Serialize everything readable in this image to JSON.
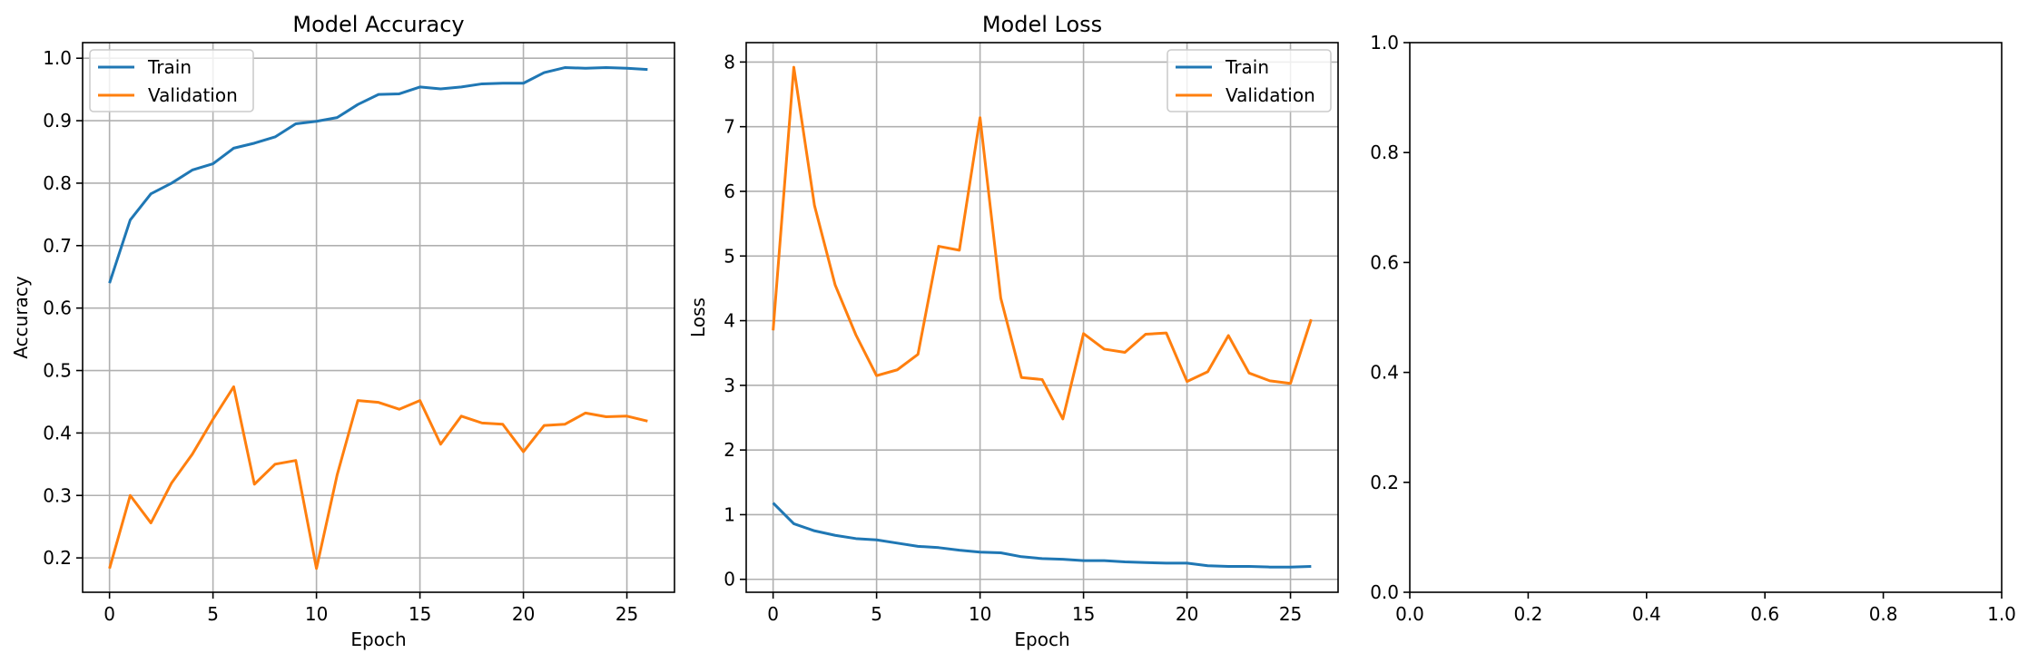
{
  "chart_data": [
    {
      "type": "line",
      "title": "Model Accuracy",
      "xlabel": "Epoch",
      "ylabel": "Accuracy",
      "xlim": [
        -1.3,
        27.3
      ],
      "ylim": [
        0.145,
        1.025
      ],
      "xticks": [
        0,
        5,
        10,
        15,
        20,
        25
      ],
      "yticks": [
        0.2,
        0.3,
        0.4,
        0.5,
        0.6,
        0.7,
        0.8,
        0.9,
        1.0
      ],
      "ytick_labels": [
        "0.2",
        "0.3",
        "0.4",
        "0.5",
        "0.6",
        "0.7",
        "0.8",
        "0.9",
        "1.0"
      ],
      "grid": true,
      "legend": "top-left",
      "x": [
        0,
        1,
        2,
        3,
        4,
        5,
        6,
        7,
        8,
        9,
        10,
        11,
        12,
        13,
        14,
        15,
        16,
        17,
        18,
        19,
        20,
        21,
        22,
        23,
        24,
        25,
        26
      ],
      "series": [
        {
          "name": "Train",
          "color": "#1f77b4",
          "values": [
            0.64,
            0.741,
            0.783,
            0.8,
            0.821,
            0.831,
            0.856,
            0.864,
            0.874,
            0.895,
            0.899,
            0.905,
            0.926,
            0.942,
            0.943,
            0.954,
            0.951,
            0.954,
            0.959,
            0.96,
            0.96,
            0.977,
            0.985,
            0.984,
            0.985,
            0.984,
            0.982
          ]
        },
        {
          "name": "Validation",
          "color": "#ff7f0e",
          "values": [
            0.183,
            0.3,
            0.256,
            0.32,
            0.366,
            0.422,
            0.474,
            0.318,
            0.35,
            0.356,
            0.183,
            0.333,
            0.452,
            0.449,
            0.438,
            0.452,
            0.382,
            0.427,
            0.416,
            0.414,
            0.37,
            0.412,
            0.414,
            0.432,
            0.426,
            0.427,
            0.419
          ]
        }
      ]
    },
    {
      "type": "line",
      "title": "Model Loss",
      "xlabel": "Epoch",
      "ylabel": "Loss",
      "xlim": [
        -1.3,
        27.3
      ],
      "ylim": [
        -0.2,
        8.3
      ],
      "xticks": [
        0,
        5,
        10,
        15,
        20,
        25
      ],
      "yticks": [
        0,
        1,
        2,
        3,
        4,
        5,
        6,
        7,
        8
      ],
      "ytick_labels": [
        "0",
        "1",
        "2",
        "3",
        "4",
        "5",
        "6",
        "7",
        "8"
      ],
      "grid": true,
      "legend": "top-right",
      "x": [
        0,
        1,
        2,
        3,
        4,
        5,
        6,
        7,
        8,
        9,
        10,
        11,
        12,
        13,
        14,
        15,
        16,
        17,
        18,
        19,
        20,
        21,
        22,
        23,
        24,
        25,
        26
      ],
      "series": [
        {
          "name": "Train",
          "color": "#1f77b4",
          "values": [
            1.18,
            0.86,
            0.75,
            0.68,
            0.63,
            0.61,
            0.56,
            0.51,
            0.49,
            0.45,
            0.42,
            0.41,
            0.35,
            0.32,
            0.31,
            0.29,
            0.29,
            0.27,
            0.26,
            0.25,
            0.25,
            0.21,
            0.2,
            0.2,
            0.19,
            0.19,
            0.2
          ]
        },
        {
          "name": "Validation",
          "color": "#ff7f0e",
          "values": [
            3.85,
            7.92,
            5.78,
            4.55,
            3.78,
            3.15,
            3.24,
            3.48,
            5.15,
            5.09,
            7.14,
            4.35,
            3.12,
            3.09,
            2.48,
            3.8,
            3.56,
            3.51,
            3.79,
            3.81,
            3.06,
            3.21,
            3.77,
            3.19,
            3.07,
            3.03,
            4.02
          ]
        }
      ]
    },
    {
      "type": "line",
      "title": "",
      "xlabel": "",
      "ylabel": "",
      "xlim": [
        0,
        1
      ],
      "ylim": [
        0,
        1
      ],
      "xticks": [
        0,
        0.2,
        0.4,
        0.6,
        0.8,
        1.0
      ],
      "xtick_labels": [
        "0.0",
        "0.2",
        "0.4",
        "0.6",
        "0.8",
        "1.0"
      ],
      "yticks": [
        0,
        0.2,
        0.4,
        0.6,
        0.8,
        1.0
      ],
      "ytick_labels": [
        "0.0",
        "0.2",
        "0.4",
        "0.6",
        "0.8",
        "1.0"
      ],
      "grid": false,
      "series": []
    }
  ]
}
